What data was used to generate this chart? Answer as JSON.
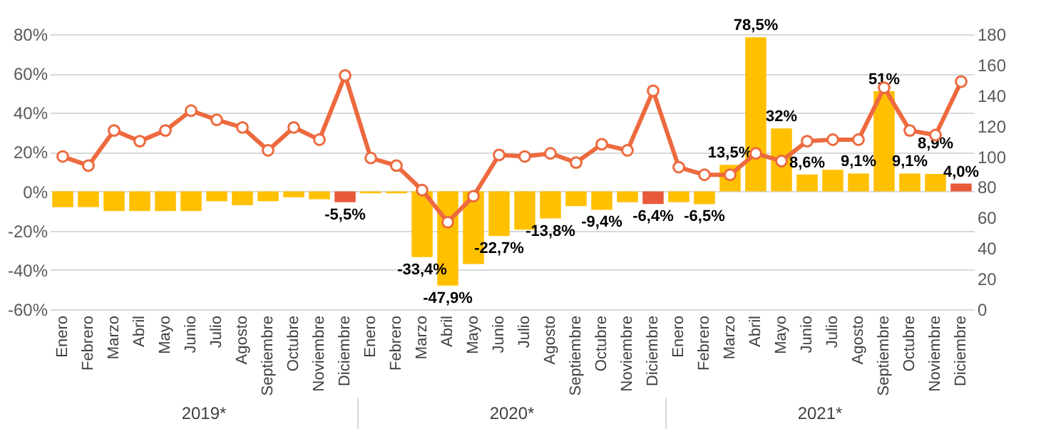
{
  "chart_data": {
    "type": "bar",
    "categories": [
      "Enero",
      "Febrero",
      "Marzo",
      "Abril",
      "Mayo",
      "Junio",
      "Julio",
      "Agosto",
      "Septiembre",
      "Octubre",
      "Noviembre",
      "Diciembre",
      "Enero",
      "Febrero",
      "Marzo",
      "Abril",
      "Mayo",
      "Junio",
      "Julio",
      "Agosto",
      "Septiembre",
      "Octubre",
      "Noviembre",
      "Diciembre",
      "Enero",
      "Febrero",
      "Marzo",
      "Abril",
      "Mayo",
      "Junio",
      "Julio",
      "Agosto",
      "Septiembre",
      "Octubre",
      "Noviembre",
      "Diciembre"
    ],
    "series": [
      {
        "colors": [
          "#ffc000",
          "#ffc000",
          "#ffc000",
          "#ffc000",
          "#ffc000",
          "#ffc000",
          "#ffc000",
          "#ffc000",
          "#ffc000",
          "#ffc000",
          "#ffc000",
          "#e8593a",
          "#ffc000",
          "#ffc000",
          "#ffc000",
          "#ffc000",
          "#ffc000",
          "#ffc000",
          "#ffc000",
          "#ffc000",
          "#ffc000",
          "#ffc000",
          "#ffc000",
          "#e8593a",
          "#ffc000",
          "#ffc000",
          "#ffc000",
          "#ffc000",
          "#ffc000",
          "#ffc000",
          "#ffc000",
          "#ffc000",
          "#ffc000",
          "#ffc000",
          "#ffc000",
          "#e8593a"
        ],
        "values": [
          -8,
          -8,
          -10,
          -10,
          -10,
          -10,
          -5,
          -7,
          -5,
          -3,
          -4,
          -5.5,
          -1,
          -1,
          -33.4,
          -47.9,
          -37,
          -22.7,
          -19.5,
          -13.8,
          -7.5,
          -9.4,
          -5.5,
          -6.4,
          -5.5,
          -6.5,
          13.5,
          78.5,
          32,
          8.6,
          11,
          9.1,
          51,
          9.1,
          8.9,
          4.0
        ],
        "value_labels": [
          null,
          null,
          null,
          null,
          null,
          null,
          null,
          null,
          null,
          null,
          null,
          "-5,5%",
          null,
          null,
          "-33,4%",
          "-47,9%",
          null,
          "-22,7%",
          null,
          "-13,8%",
          null,
          "-9,4%",
          null,
          "-6,4%",
          null,
          "-6,5%",
          "13,5%",
          "78,5%",
          "32%",
          "8,6%",
          null,
          "9,1%",
          "51%",
          "9,1%",
          "8,9%",
          "4,0%"
        ]
      },
      {
        "type": "line",
        "axis": "y2",
        "color": "#ed6a3f",
        "values": [
          100,
          94,
          117,
          110,
          117,
          130,
          124,
          119,
          104,
          119,
          111,
          153,
          99,
          94,
          78,
          57,
          74,
          101,
          100,
          102,
          96,
          108,
          104,
          143,
          93,
          88,
          88,
          102,
          97,
          110,
          111,
          111,
          145,
          117,
          114,
          149
        ]
      }
    ],
    "ylim": [
      -60,
      80
    ],
    "yticks": [
      {
        "value": -60,
        "label": "-60%"
      },
      {
        "value": -40,
        "label": "-40%"
      },
      {
        "value": -20,
        "label": "-20%"
      },
      {
        "value": 0,
        "label": "0%"
      },
      {
        "value": 20,
        "label": "20%"
      },
      {
        "value": 40,
        "label": "40%"
      },
      {
        "value": 60,
        "label": "60%"
      },
      {
        "value": 80,
        "label": "80%"
      }
    ],
    "y2lim": [
      0,
      180
    ],
    "y2ticks": [
      0,
      20,
      40,
      60,
      80,
      100,
      120,
      140,
      160,
      180
    ],
    "grid": "y",
    "marker": "circle",
    "annotations": [
      "2019*",
      "2020*",
      "2021*"
    ]
  }
}
